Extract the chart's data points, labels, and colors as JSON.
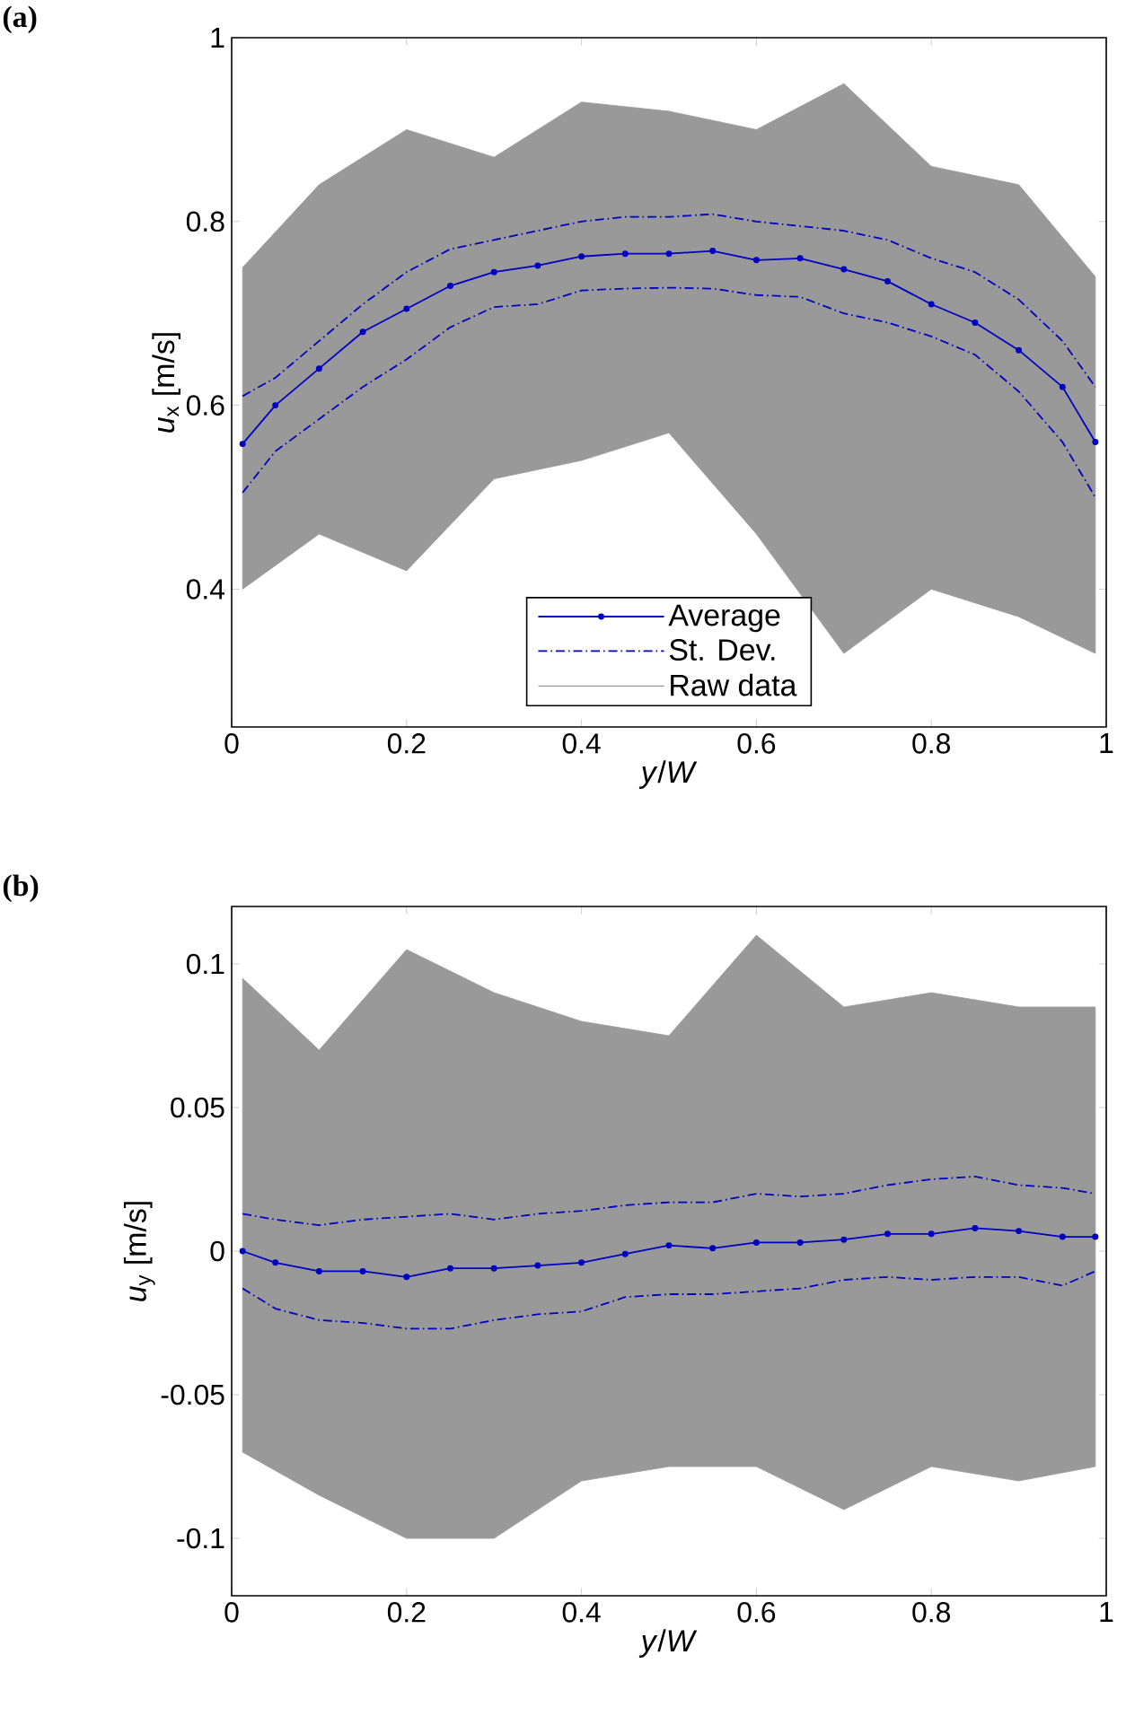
{
  "chart_data": [
    {
      "type": "line",
      "title": "(a)",
      "xlabel": "*y*/*W*",
      "ylabel": "*u*$_{x}$ [m/s]",
      "xlim": [
        0,
        1
      ],
      "ylim": [
        0.25,
        1
      ],
      "xticks": [
        0,
        0.2,
        0.4,
        0.6,
        0.8,
        1
      ],
      "yticks": [
        0.4,
        0.6,
        0.8,
        1
      ],
      "legend": "bottom",
      "series": [
        {
          "name": "Average",
          "color": "#0000c0",
          "marker": "circle",
          "line_style": "solid",
          "x": [
            0.0125,
            0.05,
            0.1,
            0.15,
            0.2,
            0.25,
            0.3,
            0.35,
            0.4,
            0.45,
            0.5,
            0.55,
            0.6,
            0.65,
            0.7,
            0.75,
            0.8,
            0.85,
            0.9,
            0.95,
            0.9875
          ],
          "values": [
            0.558,
            0.6,
            0.64,
            0.68,
            0.705,
            0.73,
            0.745,
            0.752,
            0.762,
            0.765,
            0.765,
            0.768,
            0.758,
            0.76,
            0.748,
            0.735,
            0.71,
            0.69,
            0.66,
            0.62,
            0.56
          ]
        },
        {
          "name": "St. Dev.",
          "color": "#0000c0",
          "marker": "none",
          "line_style": "dashdot",
          "x": [
            0.0125,
            0.05,
            0.1,
            0.15,
            0.2,
            0.25,
            0.3,
            0.35,
            0.4,
            0.45,
            0.5,
            0.55,
            0.6,
            0.65,
            0.7,
            0.75,
            0.8,
            0.85,
            0.9,
            0.95,
            0.9875
          ],
          "values": [
            0.61,
            0.63,
            0.67,
            0.71,
            0.745,
            0.77,
            0.78,
            0.79,
            0.8,
            0.805,
            0.805,
            0.808,
            0.8,
            0.795,
            0.79,
            0.78,
            0.76,
            0.745,
            0.715,
            0.67,
            0.62
          ]
        },
        {
          "color": "#0000c0",
          "marker": "none",
          "line_style": "dashdot",
          "x": [
            0.0125,
            0.05,
            0.1,
            0.15,
            0.2,
            0.25,
            0.3,
            0.35,
            0.4,
            0.45,
            0.5,
            0.55,
            0.6,
            0.65,
            0.7,
            0.75,
            0.8,
            0.85,
            0.9,
            0.95,
            0.9875
          ],
          "values": [
            0.505,
            0.55,
            0.585,
            0.62,
            0.65,
            0.685,
            0.707,
            0.71,
            0.725,
            0.727,
            0.728,
            0.727,
            0.72,
            0.718,
            0.7,
            0.69,
            0.675,
            0.655,
            0.615,
            0.56,
            0.5
          ]
        },
        {
          "name": "Raw data",
          "type": "area",
          "color": "#999999",
          "x": [
            0.0125,
            0.1,
            0.2,
            0.3,
            0.4,
            0.5,
            0.6,
            0.7,
            0.8,
            0.9,
            0.9875
          ],
          "values": [
            null,
            null,
            null,
            null,
            null,
            null,
            null,
            null,
            null,
            null,
            null
          ],
          "upper": [
            0.75,
            0.84,
            0.9,
            0.87,
            0.93,
            0.92,
            0.9,
            0.95,
            0.86,
            0.84,
            0.74
          ],
          "lower": [
            0.4,
            0.46,
            0.42,
            0.52,
            0.54,
            0.57,
            0.46,
            0.33,
            0.4,
            0.37,
            0.33
          ]
        }
      ]
    },
    {
      "type": "line",
      "title": "(b)",
      "xlabel": "*y*/*W*",
      "ylabel": "*u*$_{y}$ [m/s]",
      "xlim": [
        0,
        1
      ],
      "ylim": [
        -0.12,
        0.12
      ],
      "xticks": [
        0,
        0.2,
        0.4,
        0.6,
        0.8,
        1
      ],
      "yticks": [
        -0.1,
        -0.05,
        0,
        0.05,
        0.1
      ],
      "legend": false,
      "series": [
        {
          "color": "#0000c0",
          "marker": "circle",
          "line_style": "solid",
          "x": [
            0.0125,
            0.05,
            0.1,
            0.15,
            0.2,
            0.25,
            0.3,
            0.35,
            0.4,
            0.45,
            0.5,
            0.55,
            0.6,
            0.65,
            0.7,
            0.75,
            0.8,
            0.85,
            0.9,
            0.95,
            0.9875
          ],
          "values": [
            0,
            -0.004,
            -0.007,
            -0.007,
            -0.009,
            -0.006,
            -0.006,
            -0.005,
            -0.004,
            -0.001,
            0.002,
            0.001,
            0.003,
            0.003,
            0.004,
            0.006,
            0.006,
            0.008,
            0.007,
            0.005,
            0.005
          ]
        },
        {
          "color": "#0000c0",
          "marker": "none",
          "line_style": "dashdot",
          "x": [
            0.0125,
            0.05,
            0.1,
            0.15,
            0.2,
            0.25,
            0.3,
            0.35,
            0.4,
            0.45,
            0.5,
            0.55,
            0.6,
            0.65,
            0.7,
            0.75,
            0.8,
            0.85,
            0.9,
            0.95,
            0.9875
          ],
          "values": [
            0.013,
            0.011,
            0.009,
            0.011,
            0.012,
            0.013,
            0.011,
            0.013,
            0.014,
            0.016,
            0.017,
            0.017,
            0.02,
            0.019,
            0.02,
            0.023,
            0.025,
            0.026,
            0.023,
            0.022,
            0.02
          ]
        },
        {
          "color": "#0000c0",
          "marker": "none",
          "line_style": "dashdot",
          "x": [
            0.0125,
            0.05,
            0.1,
            0.15,
            0.2,
            0.25,
            0.3,
            0.35,
            0.4,
            0.45,
            0.5,
            0.55,
            0.6,
            0.65,
            0.7,
            0.75,
            0.8,
            0.85,
            0.9,
            0.95,
            0.9875
          ],
          "values": [
            -0.013,
            -0.02,
            -0.024,
            -0.025,
            -0.027,
            -0.027,
            -0.024,
            -0.022,
            -0.021,
            -0.016,
            -0.015,
            -0.015,
            -0.014,
            -0.013,
            -0.01,
            -0.009,
            -0.01,
            -0.009,
            -0.009,
            -0.012,
            -0.007
          ]
        },
        {
          "type": "area",
          "color": "#999999",
          "x": [
            0.0125,
            0.1,
            0.2,
            0.3,
            0.4,
            0.5,
            0.6,
            0.7,
            0.8,
            0.9,
            0.9875
          ],
          "values": [
            null,
            null,
            null,
            null,
            null,
            null,
            null,
            null,
            null,
            null,
            null
          ],
          "upper": [
            0.095,
            0.07,
            0.105,
            0.09,
            0.08,
            0.075,
            0.11,
            0.085,
            0.09,
            0.085,
            0.085
          ],
          "lower": [
            -0.07,
            -0.085,
            -0.1,
            -0.1,
            -0.08,
            -0.075,
            -0.075,
            -0.09,
            -0.075,
            -0.08,
            -0.075
          ]
        }
      ]
    }
  ]
}
